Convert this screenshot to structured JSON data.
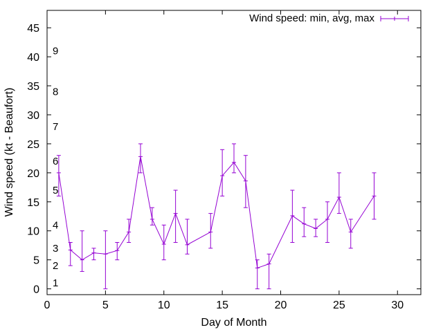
{
  "chart_data": {
    "type": "line",
    "title": "",
    "xlabel": "Day of Month",
    "ylabel": "Wind speed (kt - Beaufort)",
    "xlim": [
      0,
      32
    ],
    "ylim": [
      -1,
      48
    ],
    "xticks": [
      0,
      5,
      10,
      15,
      20,
      25,
      30
    ],
    "yticks": [
      0,
      5,
      10,
      15,
      20,
      25,
      30,
      35,
      40,
      45
    ],
    "grid": false,
    "legend_position": "top-right",
    "beaufort_labels": [
      {
        "text": "1",
        "y": 1
      },
      {
        "text": "2",
        "y": 4
      },
      {
        "text": "3",
        "y": 7
      },
      {
        "text": "4",
        "y": 11
      },
      {
        "text": "5",
        "y": 17
      },
      {
        "text": "6",
        "y": 22
      },
      {
        "text": "7",
        "y": 28
      },
      {
        "text": "8",
        "y": 34
      },
      {
        "text": "9",
        "y": 41
      }
    ],
    "series": [
      {
        "name": "Wind speed: min, avg, max",
        "color": "#9400d3",
        "points": [
          {
            "x": 1,
            "min": 16,
            "avg": 20,
            "max": 23
          },
          {
            "x": 2,
            "min": 4,
            "avg": 6.7,
            "max": 8
          },
          {
            "x": 3,
            "min": 3,
            "avg": 5,
            "max": 10
          },
          {
            "x": 4,
            "min": 5,
            "avg": 6.2,
            "max": 7
          },
          {
            "x": 5,
            "min": 0,
            "avg": 6,
            "max": 10
          },
          {
            "x": 6,
            "min": 5,
            "avg": 6.6,
            "max": 8
          },
          {
            "x": 7,
            "min": 8,
            "avg": 9.8,
            "max": 12
          },
          {
            "x": 8,
            "min": 20,
            "avg": 22.8,
            "max": 25
          },
          {
            "x": 9,
            "min": 11,
            "avg": 12,
            "max": 14
          },
          {
            "x": 10,
            "min": 5,
            "avg": 7.7,
            "max": 11
          },
          {
            "x": 11,
            "min": 8,
            "avg": 13,
            "max": 17
          },
          {
            "x": 12,
            "min": 6,
            "avg": 7.6,
            "max": 12
          },
          {
            "x": 14,
            "min": 7,
            "avg": 9.8,
            "max": 13
          },
          {
            "x": 15,
            "min": 16,
            "avg": 19.5,
            "max": 24
          },
          {
            "x": 16,
            "min": 20,
            "avg": 21.8,
            "max": 25
          },
          {
            "x": 17,
            "min": 14,
            "avg": 18.6,
            "max": 23
          },
          {
            "x": 18,
            "min": 0,
            "avg": 3.6,
            "max": 5
          },
          {
            "x": 19,
            "min": 0,
            "avg": 4.3,
            "max": 6
          },
          {
            "x": 21,
            "min": 8,
            "avg": 12.6,
            "max": 17
          },
          {
            "x": 22,
            "min": 9,
            "avg": 11.2,
            "max": 14
          },
          {
            "x": 23,
            "min": 9,
            "avg": 10.4,
            "max": 12
          },
          {
            "x": 24,
            "min": 8,
            "avg": 12,
            "max": 15
          },
          {
            "x": 25,
            "min": 13,
            "avg": 15.8,
            "max": 20
          },
          {
            "x": 26,
            "min": 7,
            "avg": 9.8,
            "max": 12
          },
          {
            "x": 28,
            "min": 12,
            "avg": 16,
            "max": 20
          }
        ]
      }
    ]
  }
}
